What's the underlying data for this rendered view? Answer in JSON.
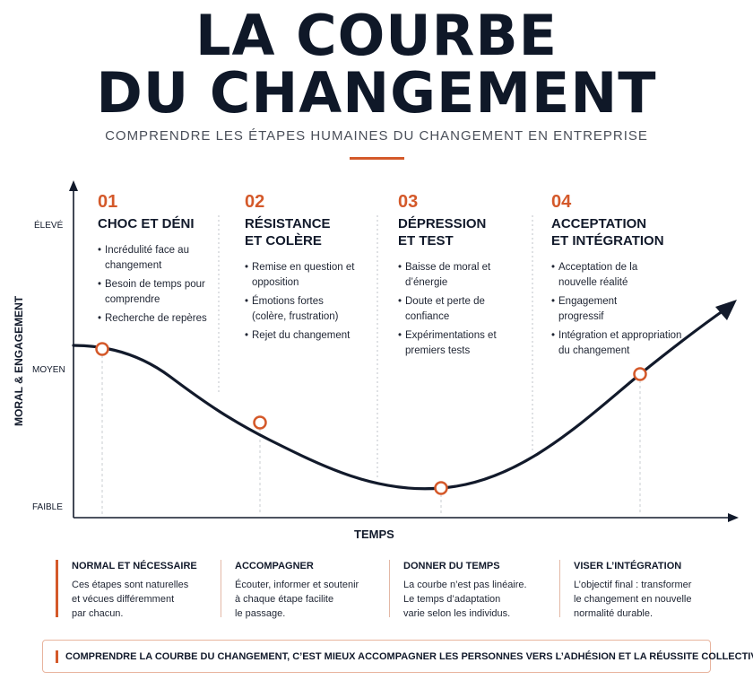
{
  "header": {
    "title_line1": "LA COURBE",
    "title_line2": "DU CHANGEMENT",
    "subtitle": "COMPRENDRE LES ÉTAPES HUMAINES DU CHANGEMENT EN ENTREPRISE"
  },
  "colors": {
    "accent": "#d4592a",
    "ink": "#121a2b",
    "curve": "#121a2b",
    "divider": "#bfc3ca"
  },
  "axes": {
    "y_label": "MORAL & ENGAGEMENT",
    "x_label": "TEMPS",
    "levels": {
      "high": "ÉLEVÉ",
      "mid": "MOYEN",
      "low": "FAIBLE"
    }
  },
  "stages": [
    {
      "number": "01",
      "title_line1": "CHOC ET DÉNI",
      "title_line2": "",
      "bullets": [
        "Incrédulité face au changement",
        "Besoin de temps pour comprendre",
        "Recherche de repères"
      ]
    },
    {
      "number": "02",
      "title_line1": "RÉSISTANCE",
      "title_line2": "ET COLÈRE",
      "bullets": [
        "Remise en question et opposition",
        "Émotions fortes (colère, frustration)",
        "Rejet du changement"
      ]
    },
    {
      "number": "03",
      "title_line1": "DÉPRESSION",
      "title_line2": "ET TEST",
      "bullets": [
        "Baisse de moral et d’énergie",
        "Doute et perte de confiance",
        "Expérimentations et premiers tests"
      ]
    },
    {
      "number": "04",
      "title_line1": "ACCEPTATION",
      "title_line2": "ET INTÉGRATION",
      "bullets": [
        "Acceptation de la nouvelle réalité",
        "Engagement progressif",
        "Intégration et appropriation du changement"
      ]
    }
  ],
  "chart_data": {
    "type": "line",
    "x_label": "TEMPS",
    "y_label": "MORAL & ENGAGEMENT",
    "y_levels": [
      "FAIBLE",
      "MOYEN",
      "ÉLEVÉ"
    ],
    "markers": [
      {
        "stage": "01",
        "level": "MOYEN"
      },
      {
        "stage": "02",
        "level": "entre MOYEN et FAIBLE"
      },
      {
        "stage": "03",
        "level": "FAIBLE"
      },
      {
        "stage": "04",
        "level": "MOYEN"
      }
    ],
    "grid": false
  },
  "info_boxes": [
    {
      "title": "NORMAL ET NÉCESSAIRE",
      "body": [
        "Ces étapes sont naturelles",
        "et vécues différemment",
        "par chacun."
      ]
    },
    {
      "title": "ACCOMPAGNER",
      "body": [
        "Écouter, informer et soutenir",
        "à chaque étape facilite",
        "le passage."
      ]
    },
    {
      "title": "DONNER DU TEMPS",
      "body": [
        "La courbe n’est pas linéaire.",
        "Le temps d’adaptation",
        "varie selon les individus."
      ]
    },
    {
      "title": "VISER L’INTÉGRATION",
      "body": [
        "L’objectif final : transformer",
        "le changement en nouvelle",
        "normalité durable."
      ]
    }
  ],
  "banner": {
    "text": "COMPRENDRE LA COURBE DU CHANGEMENT, C’EST MIEUX ACCOMPAGNER LES PERSONNES VERS L’ADHÉSION ET LA RÉUSSITE COLLECTIVE."
  }
}
